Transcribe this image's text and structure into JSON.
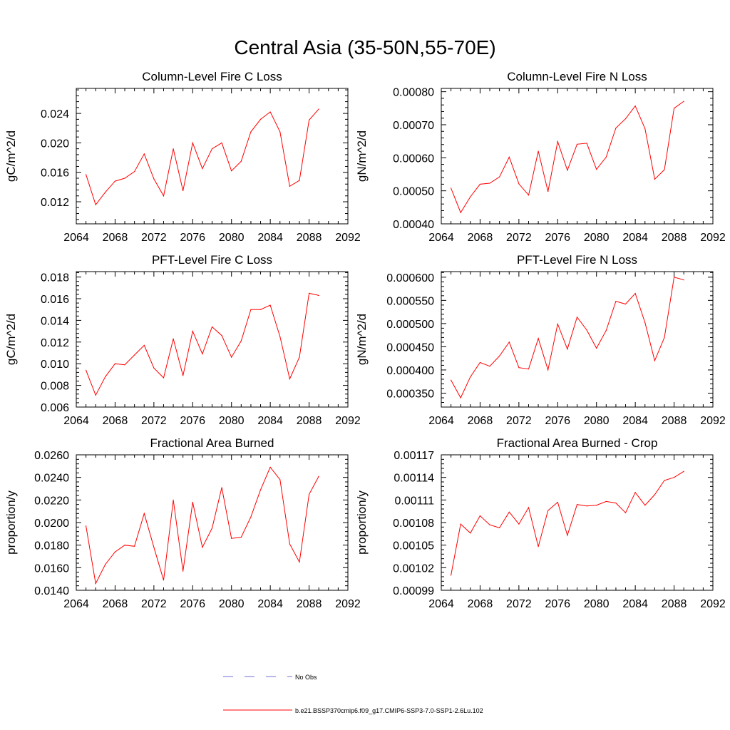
{
  "page_title": "Central Asia (35-50N,55-70E)",
  "legend": {
    "entries": [
      {
        "label": "No Obs",
        "color": "#6f6fd6",
        "style": "dashed"
      },
      {
        "label": "b.e21.BSSP370cmip6.f09_g17.CMIP6-SSP3-7.0-SSP1-2.6Lu.102",
        "color": "#ff0000",
        "style": "solid"
      }
    ]
  },
  "chart_data": [
    {
      "type": "line",
      "title": "Column-Level Fire C Loss",
      "ylabel": "gC/m^2/d",
      "xlabel": "",
      "xlim": [
        2064,
        2092
      ],
      "ylim": [
        0.009,
        0.0274
      ],
      "xticks": [
        "2064",
        "2068",
        "2072",
        "2076",
        "2080",
        "2084",
        "2088",
        "2092"
      ],
      "yticks": [
        "0.012",
        "0.016",
        "0.020",
        "0.024"
      ],
      "x": [
        2065,
        2066,
        2067,
        2068,
        2069,
        2070,
        2071,
        2072,
        2073,
        2074,
        2075,
        2076,
        2077,
        2078,
        2079,
        2080,
        2081,
        2082,
        2083,
        2084,
        2085,
        2086,
        2087,
        2088,
        2089
      ],
      "series": [
        {
          "color": "#ff0000",
          "values": [
            0.0157,
            0.0116,
            0.0133,
            0.0148,
            0.0152,
            0.0161,
            0.0185,
            0.0151,
            0.0128,
            0.0192,
            0.0135,
            0.02,
            0.0165,
            0.0192,
            0.02,
            0.0162,
            0.0175,
            0.0215,
            0.0232,
            0.0242,
            0.0215,
            0.0141,
            0.0149,
            0.0231,
            0.0246
          ]
        }
      ]
    },
    {
      "type": "line",
      "title": "Column-Level Fire N Loss",
      "ylabel": "gN/m^2/d",
      "xlabel": "",
      "xlim": [
        2064,
        2092
      ],
      "ylim": [
        0.0004,
        0.00081
      ],
      "xticks": [
        "2064",
        "2068",
        "2072",
        "2076",
        "2080",
        "2084",
        "2088",
        "2092"
      ],
      "yticks": [
        "0.00040",
        "0.00050",
        "0.00060",
        "0.00070",
        "0.00080"
      ],
      "x": [
        2065,
        2066,
        2067,
        2068,
        2069,
        2070,
        2071,
        2072,
        2073,
        2074,
        2075,
        2076,
        2077,
        2078,
        2079,
        2080,
        2081,
        2082,
        2083,
        2084,
        2085,
        2086,
        2087,
        2088,
        2089
      ],
      "series": [
        {
          "color": "#ff0000",
          "values": [
            0.000508,
            0.000434,
            0.000482,
            0.00052,
            0.000523,
            0.000542,
            0.000602,
            0.000521,
            0.000487,
            0.00062,
            0.000498,
            0.000649,
            0.000562,
            0.000641,
            0.000644,
            0.000565,
            0.000602,
            0.00069,
            0.000718,
            0.000757,
            0.000688,
            0.000535,
            0.000564,
            0.00075,
            0.000771
          ]
        }
      ]
    },
    {
      "type": "line",
      "title": "PFT-Level Fire C Loss",
      "ylabel": "gC/m^2/d",
      "xlabel": "",
      "xlim": [
        2064,
        2092
      ],
      "ylim": [
        0.006,
        0.0185
      ],
      "xticks": [
        "2064",
        "2068",
        "2072",
        "2076",
        "2080",
        "2084",
        "2088",
        "2092"
      ],
      "yticks": [
        "0.006",
        "0.008",
        "0.010",
        "0.012",
        "0.014",
        "0.016",
        "0.018"
      ],
      "x": [
        2065,
        2066,
        2067,
        2068,
        2069,
        2070,
        2071,
        2072,
        2073,
        2074,
        2075,
        2076,
        2077,
        2078,
        2079,
        2080,
        2081,
        2082,
        2083,
        2084,
        2085,
        2086,
        2087,
        2088,
        2089
      ],
      "series": [
        {
          "color": "#ff0000",
          "values": [
            0.0094,
            0.0071,
            0.0088,
            0.01,
            0.0099,
            0.0108,
            0.0117,
            0.0096,
            0.0087,
            0.0123,
            0.0089,
            0.013,
            0.0109,
            0.0134,
            0.0126,
            0.0106,
            0.0121,
            0.015,
            0.015,
            0.0154,
            0.0125,
            0.0086,
            0.0106,
            0.0165,
            0.0163
          ]
        }
      ]
    },
    {
      "type": "line",
      "title": "PFT-Level Fire N Loss",
      "ylabel": "gN/m^2/d",
      "xlabel": "",
      "xlim": [
        2064,
        2092
      ],
      "ylim": [
        0.00032,
        0.000612
      ],
      "xticks": [
        "2064",
        "2068",
        "2072",
        "2076",
        "2080",
        "2084",
        "2088",
        "2092"
      ],
      "yticks": [
        "0.000350",
        "0.000400",
        "0.000450",
        "0.000500",
        "0.000550",
        "0.000600"
      ],
      "x": [
        2065,
        2066,
        2067,
        2068,
        2069,
        2070,
        2071,
        2072,
        2073,
        2074,
        2075,
        2076,
        2077,
        2078,
        2079,
        2080,
        2081,
        2082,
        2083,
        2084,
        2085,
        2086,
        2087,
        2088,
        2089
      ],
      "series": [
        {
          "color": "#ff0000",
          "values": [
            0.000378,
            0.00034,
            0.000385,
            0.000416,
            0.000408,
            0.00043,
            0.00046,
            0.000405,
            0.000402,
            0.000468,
            0.0004,
            0.000499,
            0.000445,
            0.000514,
            0.000486,
            0.000447,
            0.000485,
            0.000548,
            0.000542,
            0.000565,
            0.000502,
            0.00042,
            0.00047,
            0.0006,
            0.000594
          ]
        }
      ]
    },
    {
      "type": "line",
      "title": "Fractional Area Burned",
      "ylabel": "proportion/y",
      "xlabel": "",
      "xlim": [
        2064,
        2092
      ],
      "ylim": [
        0.014,
        0.026
      ],
      "xticks": [
        "2064",
        "2068",
        "2072",
        "2076",
        "2080",
        "2084",
        "2088",
        "2092"
      ],
      "yticks": [
        "0.0140",
        "0.0160",
        "0.0180",
        "0.0200",
        "0.0220",
        "0.0240",
        "0.0260"
      ],
      "x": [
        2065,
        2066,
        2067,
        2068,
        2069,
        2070,
        2071,
        2072,
        2073,
        2074,
        2075,
        2076,
        2077,
        2078,
        2079,
        2080,
        2081,
        2082,
        2083,
        2084,
        2085,
        2086,
        2087,
        2088,
        2089
      ],
      "series": [
        {
          "color": "#ff0000",
          "values": [
            0.0197,
            0.0146,
            0.0163,
            0.0174,
            0.018,
            0.0179,
            0.0208,
            0.0178,
            0.0149,
            0.022,
            0.0157,
            0.0218,
            0.0178,
            0.0195,
            0.0231,
            0.0186,
            0.0187,
            0.0205,
            0.0229,
            0.0249,
            0.0238,
            0.0181,
            0.0165,
            0.0225,
            0.0241
          ]
        }
      ]
    },
    {
      "type": "line",
      "title": "Fractional Area Burned - Crop",
      "ylabel": "proportion/y",
      "xlabel": "",
      "xlim": [
        2064,
        2092
      ],
      "ylim": [
        0.00099,
        0.00117
      ],
      "xticks": [
        "2064",
        "2068",
        "2072",
        "2076",
        "2080",
        "2084",
        "2088",
        "2092"
      ],
      "yticks": [
        "0.00099",
        "0.00102",
        "0.00105",
        "0.00108",
        "0.00111",
        "0.00114",
        "0.00117"
      ],
      "x": [
        2065,
        2066,
        2067,
        2068,
        2069,
        2070,
        2071,
        2072,
        2073,
        2074,
        2075,
        2076,
        2077,
        2078,
        2079,
        2080,
        2081,
        2082,
        2083,
        2084,
        2085,
        2086,
        2087,
        2088,
        2089
      ],
      "series": [
        {
          "color": "#ff0000",
          "values": [
            0.00101,
            0.001078,
            0.001066,
            0.001089,
            0.001077,
            0.001073,
            0.001094,
            0.001078,
            0.0011,
            0.001048,
            0.001096,
            0.001107,
            0.001063,
            0.001104,
            0.001102,
            0.001103,
            0.001108,
            0.001106,
            0.001093,
            0.00112,
            0.001103,
            0.001117,
            0.001136,
            0.00114,
            0.001148
          ]
        }
      ]
    }
  ]
}
